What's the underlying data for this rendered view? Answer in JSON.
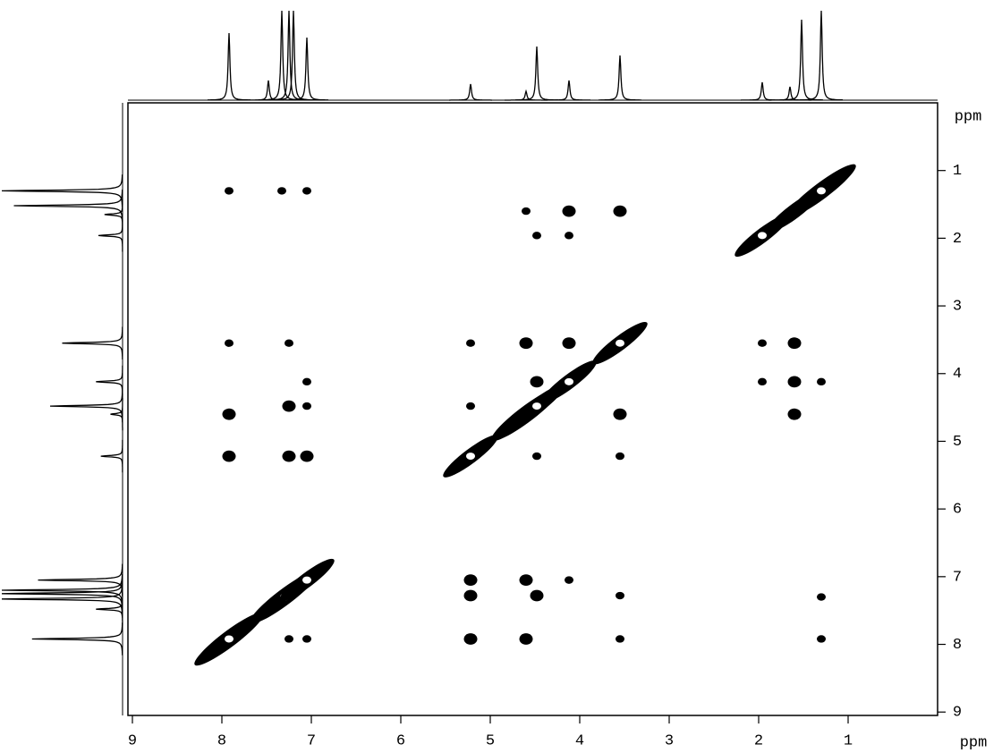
{
  "chart_data": {
    "type": "contour",
    "x_label": "ppm",
    "y_label": "ppm",
    "xlim": [
      9.05,
      0
    ],
    "ylim": [
      0,
      9.05
    ],
    "xticks": [
      9,
      8,
      7,
      6,
      5,
      4,
      3,
      2,
      1
    ],
    "yticks": [
      1,
      2,
      3,
      4,
      5,
      6,
      7,
      8,
      9
    ],
    "color": "#000000",
    "projection": {
      "positions": [
        7.92,
        7.48,
        7.33,
        7.25,
        7.2,
        7.05,
        5.22,
        4.6,
        4.48,
        4.12,
        3.55,
        1.96,
        1.65,
        1.52,
        1.3
      ],
      "heights": [
        75,
        22,
        100,
        100,
        100,
        70,
        18,
        10,
        60,
        22,
        50,
        20,
        15,
        90,
        100
      ]
    },
    "diagonal": {
      "x": [
        7.92,
        7.3,
        7.05,
        5.22,
        4.6,
        4.48,
        4.12,
        3.55,
        1.96,
        1.6,
        1.3
      ],
      "y": [
        7.92,
        7.3,
        7.05,
        5.22,
        4.6,
        4.48,
        4.12,
        3.55,
        1.96,
        1.6,
        1.3
      ],
      "size": [
        3,
        3,
        2,
        2,
        3,
        2,
        2,
        2,
        2,
        2,
        3
      ]
    },
    "cross_peaks": {
      "x": [
        7.92,
        7.33,
        7.05,
        4.6,
        4.12,
        3.55,
        4.48,
        4.12,
        7.92,
        7.25,
        5.22,
        4.6,
        4.12,
        1.96,
        1.6,
        7.05,
        4.48,
        1.96,
        1.6,
        1.3,
        7.92,
        7.25,
        7.05,
        5.22,
        3.55,
        1.6,
        7.92,
        7.25,
        7.05,
        4.48,
        3.55,
        5.22,
        4.6,
        4.12,
        5.22,
        4.48,
        3.55,
        1.3,
        5.22,
        4.6,
        3.55,
        1.3,
        7.25,
        7.05
      ],
      "y": [
        1.3,
        1.3,
        1.3,
        1.6,
        1.6,
        1.6,
        1.96,
        1.96,
        3.55,
        3.55,
        3.55,
        3.55,
        3.55,
        3.55,
        3.55,
        4.12,
        4.12,
        4.12,
        4.12,
        4.12,
        4.6,
        4.48,
        4.48,
        4.48,
        4.6,
        4.6,
        5.22,
        5.22,
        5.22,
        5.22,
        5.22,
        7.05,
        7.05,
        7.05,
        7.28,
        7.28,
        7.28,
        7.3,
        7.92,
        7.92,
        7.92,
        7.92,
        7.92,
        7.92
      ],
      "size": [
        1,
        1,
        1,
        1,
        2,
        2,
        1,
        1,
        1,
        1,
        1,
        2,
        2,
        1,
        2,
        1,
        2,
        1,
        2,
        1,
        2,
        2,
        1,
        1,
        2,
        2,
        2,
        2,
        2,
        1,
        1,
        2,
        2,
        1,
        2,
        2,
        1,
        1,
        2,
        2,
        1,
        1,
        1,
        1
      ]
    }
  }
}
